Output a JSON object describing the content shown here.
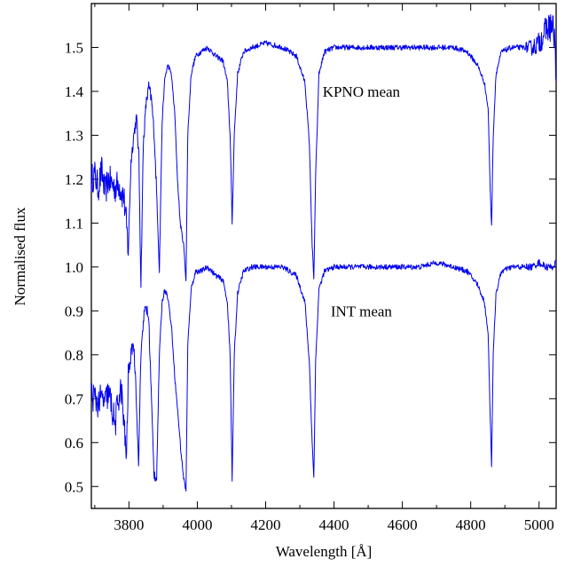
{
  "chart_data": {
    "type": "line",
    "title": "",
    "xlabel": "Wavelength [Å]",
    "ylabel": "Normalised flux",
    "xlim": [
      3690,
      5050
    ],
    "ylim": [
      0.45,
      1.6
    ],
    "x_ticks": [
      {
        "value": 3800,
        "label": "3800"
      },
      {
        "value": 4000,
        "label": "4000"
      },
      {
        "value": 4200,
        "label": "4200"
      },
      {
        "value": 4400,
        "label": "4400"
      },
      {
        "value": 4600,
        "label": "4600"
      },
      {
        "value": 4800,
        "label": "4800"
      },
      {
        "value": 5000,
        "label": "5000"
      }
    ],
    "y_ticks": [
      {
        "value": 0.5,
        "label": "0.5"
      },
      {
        "value": 0.6,
        "label": "0.6"
      },
      {
        "value": 0.7,
        "label": "0.7"
      },
      {
        "value": 0.8,
        "label": "0.8"
      },
      {
        "value": 0.9,
        "label": "0.9"
      },
      {
        "value": 1.0,
        "label": "1.0"
      },
      {
        "value": 1.1,
        "label": "1.1"
      },
      {
        "value": 1.2,
        "label": "1.2"
      },
      {
        "value": 1.3,
        "label": "1.3"
      },
      {
        "value": 1.4,
        "label": "1.4"
      },
      {
        "value": 1.5,
        "label": "1.5"
      }
    ],
    "grid": false,
    "line_color": "#0000ee",
    "series": [
      {
        "name": "KPNO mean",
        "label_at": [
          4480,
          1.4
        ],
        "x": [
          3690,
          3700,
          3710,
          3720,
          3730,
          3740,
          3750,
          3760,
          3770,
          3778,
          3785,
          3792,
          3798,
          3806,
          3814,
          3822,
          3829,
          3835,
          3842,
          3850,
          3858,
          3866,
          3874,
          3882,
          3889,
          3897,
          3905,
          3914,
          3924,
          3934,
          3942,
          3950,
          3960,
          3967,
          3972,
          3982,
          3995,
          4010,
          4030,
          4055,
          4075,
          4088,
          4096,
          4102,
          4108,
          4118,
          4135,
          4160,
          4200,
          4250,
          4290,
          4315,
          4328,
          4336,
          4341,
          4346,
          4356,
          4372,
          4400,
          4450,
          4500,
          4550,
          4600,
          4650,
          4700,
          4750,
          4790,
          4820,
          4840,
          4851,
          4857,
          4861,
          4866,
          4874,
          4890,
          4920,
          4950,
          4980,
          5000,
          5020,
          5035,
          5045,
          5050
        ],
        "y": [
          1.2,
          1.21,
          1.18,
          1.22,
          1.17,
          1.2,
          1.19,
          1.18,
          1.19,
          1.17,
          1.16,
          1.1,
          1.04,
          1.24,
          1.3,
          1.34,
          1.25,
          0.96,
          1.28,
          1.37,
          1.41,
          1.38,
          1.3,
          1.15,
          0.99,
          1.33,
          1.43,
          1.46,
          1.44,
          1.35,
          1.2,
          1.1,
          1.05,
          0.97,
          1.3,
          1.44,
          1.48,
          1.49,
          1.5,
          1.48,
          1.47,
          1.42,
          1.3,
          1.1,
          1.3,
          1.44,
          1.49,
          1.5,
          1.51,
          1.5,
          1.48,
          1.42,
          1.28,
          1.05,
          0.97,
          1.2,
          1.44,
          1.49,
          1.5,
          1.5,
          1.5,
          1.5,
          1.5,
          1.5,
          1.5,
          1.5,
          1.49,
          1.46,
          1.42,
          1.36,
          1.18,
          1.09,
          1.3,
          1.44,
          1.49,
          1.5,
          1.5,
          1.5,
          1.51,
          1.54,
          1.55,
          1.53,
          1.42
        ]
      },
      {
        "name": "INT mean",
        "label_at": [
          4480,
          0.9
        ],
        "x": [
          3690,
          3700,
          3710,
          3720,
          3730,
          3738,
          3745,
          3752,
          3760,
          3768,
          3778,
          3786,
          3793,
          3798,
          3806,
          3813,
          3820,
          3828,
          3835,
          3842,
          3850,
          3858,
          3865,
          3873,
          3881,
          3889,
          3897,
          3905,
          3914,
          3925,
          3935,
          3944,
          3952,
          3960,
          3967,
          3972,
          3982,
          3995,
          4010,
          4030,
          4055,
          4075,
          4088,
          4096,
          4102,
          4108,
          4118,
          4135,
          4160,
          4200,
          4250,
          4290,
          4315,
          4328,
          4336,
          4341,
          4346,
          4356,
          4372,
          4400,
          4450,
          4500,
          4550,
          4600,
          4650,
          4700,
          4750,
          4790,
          4820,
          4840,
          4851,
          4857,
          4861,
          4866,
          4874,
          4890,
          4920,
          4950,
          4980,
          5000,
          5020,
          5040,
          5050
        ],
        "y": [
          0.71,
          0.7,
          0.69,
          0.7,
          0.69,
          0.71,
          0.7,
          0.67,
          0.64,
          0.7,
          0.72,
          0.63,
          0.57,
          0.75,
          0.8,
          0.83,
          0.74,
          0.55,
          0.8,
          0.88,
          0.91,
          0.88,
          0.72,
          0.53,
          0.52,
          0.8,
          0.92,
          0.95,
          0.93,
          0.86,
          0.74,
          0.66,
          0.58,
          0.52,
          0.49,
          0.82,
          0.95,
          0.99,
          0.99,
          1.0,
          0.98,
          0.97,
          0.92,
          0.8,
          0.51,
          0.8,
          0.94,
          0.99,
          1.0,
          1.0,
          1.0,
          0.98,
          0.92,
          0.78,
          0.6,
          0.52,
          0.78,
          0.95,
          0.99,
          1.0,
          1.0,
          1.0,
          1.0,
          1.0,
          1.0,
          1.01,
          1.0,
          0.99,
          0.96,
          0.92,
          0.85,
          0.66,
          0.55,
          0.8,
          0.94,
          0.99,
          1.0,
          1.0,
          1.0,
          1.01,
          1.0,
          1.0,
          1.01
        ]
      }
    ]
  }
}
